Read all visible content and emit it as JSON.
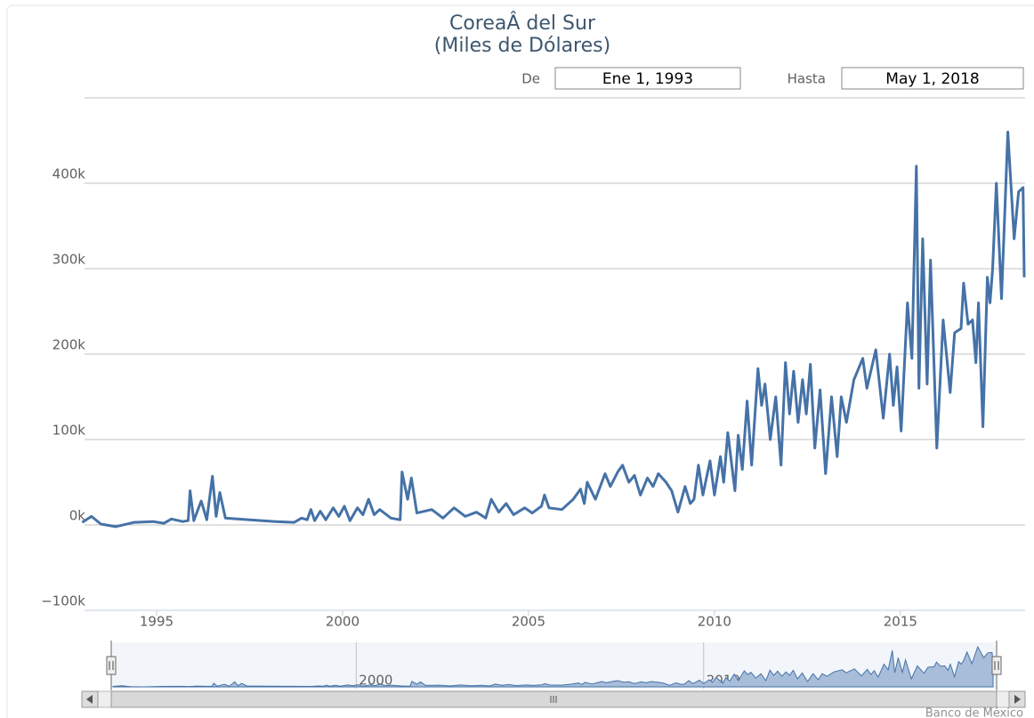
{
  "chart_data": {
    "type": "line",
    "title": "CoreaÂ del Sur",
    "subtitle": "(Miles de Dólares)",
    "range_selector": {
      "from_label": "De",
      "from": "Ene 1, 1993",
      "to_label": "Hasta",
      "to": "May 1, 2018"
    },
    "credit": "Banco de México",
    "xlim": [
      1993,
      2018.33
    ],
    "xticks": [
      1995,
      2000,
      2005,
      2010,
      2015
    ],
    "ylim": [
      -100000,
      500000
    ],
    "yticks": [
      {
        "value": -100000,
        "label": "−100k"
      },
      {
        "value": 0,
        "label": "0k"
      },
      {
        "value": 100000,
        "label": "100k"
      },
      {
        "value": 200000,
        "label": "200k"
      },
      {
        "value": 300000,
        "label": "300k"
      },
      {
        "value": 400000,
        "label": "400k"
      }
    ],
    "grid": true,
    "navigator": {
      "xticks": [
        2000,
        2010
      ],
      "color": "#a8bdd9"
    },
    "series": [
      {
        "color": "#4572a7",
        "x": [
          1993.0,
          1993.25,
          1993.5,
          1993.9,
          1994.4,
          1994.9,
          1995.2,
          1995.4,
          1995.7,
          1995.85,
          1995.9,
          1996.0,
          1996.2,
          1996.35,
          1996.5,
          1996.6,
          1996.7,
          1996.85,
          1997.5,
          1998.2,
          1998.7,
          1998.9,
          1999.05,
          1999.15,
          1999.25,
          1999.4,
          1999.55,
          1999.75,
          1999.9,
          2000.05,
          2000.2,
          2000.4,
          2000.55,
          2000.7,
          2000.85,
          2001.0,
          2001.3,
          2001.55,
          2001.6,
          2001.75,
          2001.85,
          2002.0,
          2002.4,
          2002.7,
          2003.0,
          2003.3,
          2003.6,
          2003.85,
          2004.0,
          2004.2,
          2004.4,
          2004.6,
          2004.9,
          2005.1,
          2005.35,
          2005.43,
          2005.55,
          2005.9,
          2006.2,
          2006.4,
          2006.5,
          2006.58,
          2006.8,
          2007.06,
          2007.2,
          2007.4,
          2007.53,
          2007.7,
          2007.85,
          2008.01,
          2008.2,
          2008.35,
          2008.49,
          2008.7,
          2008.85,
          2009.02,
          2009.21,
          2009.35,
          2009.45,
          2009.57,
          2009.69,
          2009.88,
          2010.0,
          2010.16,
          2010.25,
          2010.36,
          2010.55,
          2010.64,
          2010.75,
          2010.88,
          2011.0,
          2011.17,
          2011.27,
          2011.36,
          2011.5,
          2011.65,
          2011.79,
          2011.91,
          2012.02,
          2012.13,
          2012.25,
          2012.37,
          2012.47,
          2012.58,
          2012.7,
          2012.84,
          2012.99,
          2013.15,
          2013.3,
          2013.41,
          2013.55,
          2013.75,
          2013.99,
          2014.1,
          2014.34,
          2014.54,
          2014.71,
          2014.81,
          2014.91,
          2015.02,
          2015.19,
          2015.31,
          2015.43,
          2015.5,
          2015.6,
          2015.72,
          2015.81,
          2015.98,
          2016.15,
          2016.34,
          2016.46,
          2016.63,
          2016.7,
          2016.82,
          2016.94,
          2017.03,
          2017.1,
          2017.22,
          2017.34,
          2017.41,
          2017.48,
          2017.58,
          2017.72,
          2017.89,
          2018.06,
          2018.18,
          2018.3,
          2018.33
        ],
        "values": [
          3000,
          10000,
          1000,
          -2000,
          3000,
          4000,
          2000,
          7000,
          4000,
          5000,
          40000,
          5000,
          28000,
          6000,
          57000,
          10000,
          38000,
          8000,
          6000,
          4000,
          3000,
          8000,
          6000,
          18000,
          5000,
          16000,
          6000,
          20000,
          10000,
          22000,
          5000,
          20000,
          12000,
          30000,
          12000,
          18000,
          8000,
          6000,
          62000,
          30000,
          55000,
          14000,
          18000,
          8000,
          20000,
          10000,
          15000,
          8000,
          30000,
          15000,
          25000,
          12000,
          20000,
          14000,
          22000,
          35000,
          20000,
          18000,
          30000,
          42000,
          25000,
          50000,
          30000,
          60000,
          45000,
          62000,
          70000,
          50000,
          58000,
          35000,
          55000,
          45000,
          60000,
          50000,
          40000,
          15000,
          45000,
          25000,
          30000,
          70000,
          35000,
          75000,
          35000,
          80000,
          50000,
          108000,
          40000,
          105000,
          65000,
          145000,
          70000,
          183000,
          140000,
          165000,
          100000,
          150000,
          70000,
          190000,
          130000,
          180000,
          120000,
          170000,
          130000,
          188000,
          90000,
          158000,
          60000,
          150000,
          80000,
          150000,
          120000,
          170000,
          195000,
          160000,
          205000,
          125000,
          200000,
          140000,
          185000,
          110000,
          260000,
          195000,
          420000,
          160000,
          335000,
          165000,
          310000,
          90000,
          240000,
          155000,
          225000,
          230000,
          283000,
          235000,
          240000,
          190000,
          260000,
          115000,
          290000,
          260000,
          300000,
          400000,
          265000,
          460000,
          335000,
          390000,
          395000,
          290000
        ]
      }
    ]
  }
}
